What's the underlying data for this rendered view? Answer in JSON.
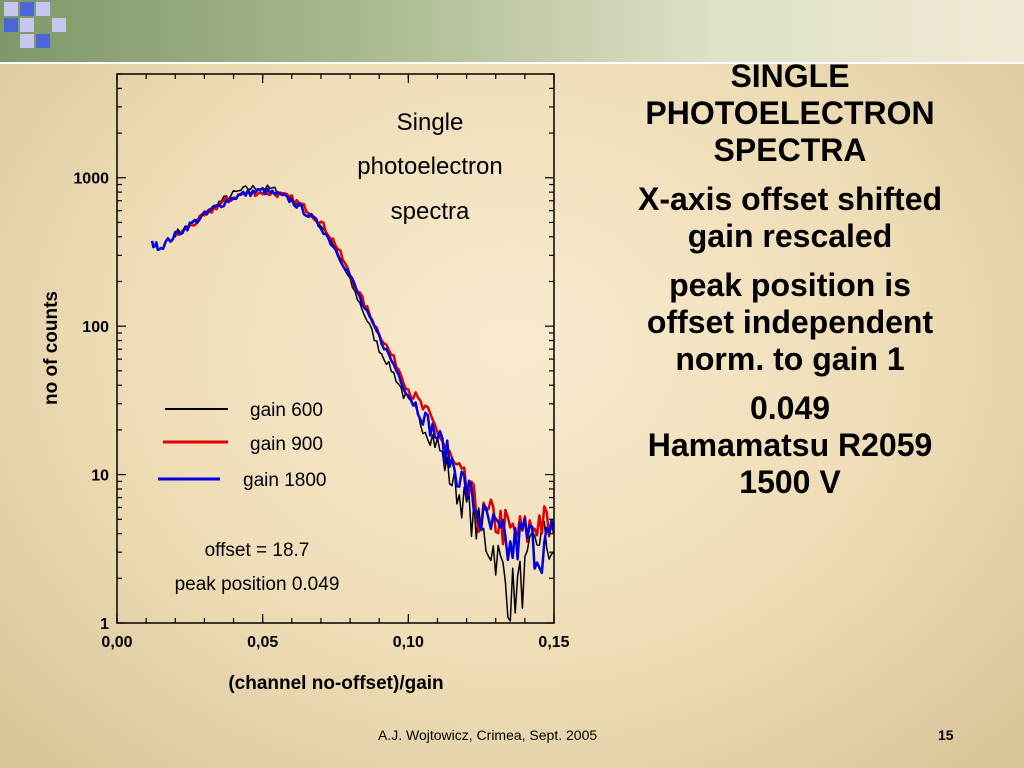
{
  "slide": {
    "heading_lines": [
      "SINGLE",
      "PHOTOELECTRON",
      "SPECTRA"
    ],
    "paragraphs": [
      [
        "X-axis offset shifted",
        "gain rescaled"
      ],
      [
        "peak position is",
        "offset independent",
        "norm. to gain 1"
      ],
      [
        "0.049",
        "Hamamatsu R2059",
        "1500 V"
      ]
    ],
    "footer": "A.J. Wojtowicz, Crimea, Sept. 2005",
    "page_number": "15",
    "colors": {
      "accent_green": "#7f9868",
      "square_blue": "#4a67d8",
      "square_lavender": "#c4c8ef"
    }
  },
  "chart_data": {
    "type": "line",
    "title_lines": [
      "Single",
      "photoelectron",
      "spectra"
    ],
    "xlabel": "(channel no-offset)/gain",
    "ylabel": "no of counts",
    "x_scale": "linear",
    "y_scale": "log",
    "xlim": [
      0,
      0.15
    ],
    "ylim": [
      1,
      5000
    ],
    "x_ticks": [
      0,
      0.05,
      0.1,
      0.15
    ],
    "x_tick_labels": [
      "0,00",
      "0,05",
      "0,10",
      "0,15"
    ],
    "y_ticks": [
      1,
      10,
      100,
      1000
    ],
    "y_tick_labels": [
      "1",
      "10",
      "100",
      "1000"
    ],
    "grid": false,
    "legend_position": "center-left",
    "annotation_lines": [
      "offset = 18.7",
      "peak position 0.049"
    ],
    "series": [
      {
        "name": "gain 600",
        "color": "#000000",
        "x": [
          0.02,
          0.025,
          0.03,
          0.035,
          0.04,
          0.045,
          0.05,
          0.055,
          0.06,
          0.065,
          0.07,
          0.075,
          0.08,
          0.085,
          0.09,
          0.095,
          0.1,
          0.105,
          0.11,
          0.115,
          0.12,
          0.125,
          0.13,
          0.135,
          0.14,
          0.145,
          0.15
        ],
        "y": [
          420,
          480,
          560,
          680,
          780,
          850,
          860,
          820,
          720,
          600,
          480,
          330,
          200,
          120,
          70,
          48,
          30,
          22,
          16,
          9,
          6,
          4,
          3,
          1.5,
          2,
          4,
          3
        ]
      },
      {
        "name": "gain 900",
        "color": "#e00000",
        "x": [
          0.02,
          0.025,
          0.03,
          0.035,
          0.04,
          0.045,
          0.05,
          0.055,
          0.06,
          0.065,
          0.07,
          0.075,
          0.08,
          0.085,
          0.09,
          0.095,
          0.1,
          0.105,
          0.11,
          0.115,
          0.12,
          0.125,
          0.13,
          0.135,
          0.14,
          0.145,
          0.15
        ],
        "y": [
          400,
          470,
          550,
          660,
          740,
          790,
          800,
          780,
          720,
          620,
          500,
          360,
          220,
          140,
          90,
          60,
          38,
          28,
          20,
          12,
          8,
          5,
          5,
          4,
          4,
          5,
          4
        ]
      },
      {
        "name": "gain 1800",
        "color": "#0000e0",
        "x": [
          0.012,
          0.015,
          0.02,
          0.025,
          0.03,
          0.035,
          0.04,
          0.045,
          0.05,
          0.055,
          0.06,
          0.065,
          0.07,
          0.075,
          0.08,
          0.085,
          0.09,
          0.095,
          0.1,
          0.105,
          0.11,
          0.115,
          0.12,
          0.125,
          0.13,
          0.135,
          0.14,
          0.145,
          0.15
        ],
        "y": [
          360,
          340,
          410,
          480,
          560,
          650,
          740,
          790,
          820,
          770,
          700,
          580,
          470,
          330,
          220,
          130,
          85,
          55,
          35,
          25,
          18,
          12,
          8,
          5,
          4,
          3,
          4,
          3,
          4
        ]
      }
    ]
  }
}
